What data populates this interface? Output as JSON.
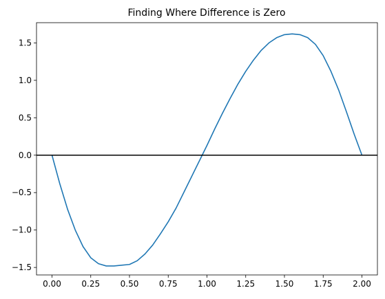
{
  "chart_data": {
    "type": "line",
    "title": "Finding Where Difference is Zero",
    "xlabel": "",
    "ylabel": "",
    "xlim": [
      -0.1,
      2.1
    ],
    "ylim": [
      -1.6,
      1.77
    ],
    "grid": false,
    "x_ticks": [
      0.0,
      0.25,
      0.5,
      0.75,
      1.0,
      1.25,
      1.5,
      1.75,
      2.0
    ],
    "x_tick_labels": [
      "0.00",
      "0.25",
      "0.50",
      "0.75",
      "1.00",
      "1.25",
      "1.50",
      "1.75",
      "2.00"
    ],
    "y_ticks": [
      -1.5,
      -1.0,
      -0.5,
      0.0,
      0.5,
      1.0,
      1.5
    ],
    "y_tick_labels": [
      "−1.5",
      "−1.0",
      "−0.5",
      "0.0",
      "0.5",
      "1.0",
      "1.5"
    ],
    "reference_line": {
      "y": 0,
      "color": "#000000"
    },
    "series": [
      {
        "color": "#1f77b4",
        "x": [
          0.0,
          0.05,
          0.1,
          0.15,
          0.2,
          0.25,
          0.3,
          0.35,
          0.4,
          0.45,
          0.5,
          0.55,
          0.6,
          0.65,
          0.7,
          0.75,
          0.8,
          0.85,
          0.9,
          0.95,
          1.0,
          1.05,
          1.1,
          1.15,
          1.2,
          1.25,
          1.3,
          1.35,
          1.4,
          1.45,
          1.5,
          1.55,
          1.6,
          1.65,
          1.7,
          1.75,
          1.8,
          1.85,
          1.9,
          1.95,
          2.0
        ],
        "y": [
          0.0,
          -0.38,
          -0.72,
          -1.0,
          -1.22,
          -1.37,
          -1.45,
          -1.48,
          -1.48,
          -1.47,
          -1.46,
          -1.41,
          -1.32,
          -1.2,
          -1.05,
          -0.89,
          -0.71,
          -0.5,
          -0.29,
          -0.08,
          0.13,
          0.35,
          0.56,
          0.76,
          0.95,
          1.12,
          1.27,
          1.4,
          1.5,
          1.57,
          1.61,
          1.62,
          1.61,
          1.57,
          1.48,
          1.33,
          1.12,
          0.87,
          0.58,
          0.28,
          0.0
        ]
      }
    ]
  }
}
